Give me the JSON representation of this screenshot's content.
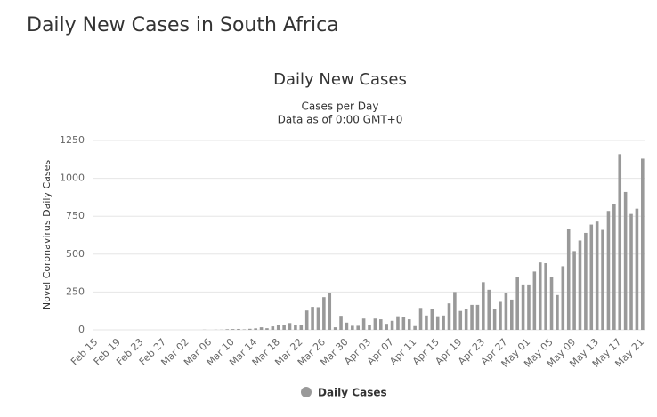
{
  "page_title": "Daily New Cases in South Africa",
  "chart_data": {
    "type": "bar",
    "title": "Daily New Cases",
    "subtitle": [
      "Cases per Day",
      "Data as of 0:00 GMT+0"
    ],
    "ylabel": "Novel Coronavirus Daily Cases",
    "categories": [
      "Feb 15",
      null,
      null,
      null,
      "Feb 19",
      null,
      null,
      null,
      "Feb 23",
      null,
      null,
      null,
      "Feb 27",
      null,
      null,
      null,
      "Mar 02",
      null,
      null,
      null,
      "Mar 06",
      null,
      null,
      null,
      "Mar 10",
      null,
      null,
      null,
      "Mar 14",
      null,
      null,
      null,
      "Mar 18",
      null,
      null,
      null,
      "Mar 22",
      null,
      null,
      null,
      "Mar 26",
      null,
      null,
      null,
      "Mar 30",
      null,
      null,
      null,
      "Apr 03",
      null,
      null,
      null,
      "Apr 07",
      null,
      null,
      null,
      "Apr 11",
      null,
      null,
      null,
      "Apr 15",
      null,
      null,
      null,
      "Apr 19",
      null,
      null,
      null,
      "Apr 23",
      null,
      null,
      null,
      "Apr 27",
      null,
      null,
      null,
      "May 01",
      null,
      null,
      null,
      "May 05",
      null,
      null,
      null,
      "May 09",
      null,
      null,
      null,
      "May 13",
      null,
      null,
      null,
      "May 17",
      null,
      null,
      null,
      "May 21"
    ],
    "series": [
      {
        "name": "Daily Cases",
        "color": "#999999",
        "values": [
          0,
          0,
          0,
          0,
          0,
          0,
          0,
          0,
          0,
          0,
          0,
          0,
          0,
          0,
          0,
          0,
          0,
          0,
          0,
          1,
          0,
          1,
          1,
          4,
          5,
          6,
          3,
          7,
          10,
          17,
          11,
          23,
          31,
          34,
          45,
          30,
          34,
          128,
          152,
          150,
          216,
          243,
          17,
          93,
          48,
          27,
          27,
          75,
          35,
          75,
          70,
          40,
          60,
          90,
          85,
          70,
          25,
          145,
          95,
          135,
          90,
          95,
          175,
          250,
          125,
          140,
          165,
          165,
          315,
          265,
          140,
          185,
          245,
          200,
          350,
          300,
          300,
          385,
          445,
          440,
          350,
          230,
          420,
          665,
          520,
          590,
          640,
          695,
          715,
          660,
          785,
          830,
          1160,
          910,
          765,
          800,
          1130
        ]
      }
    ],
    "ylim": [
      0,
      1250
    ],
    "yticks": [
      0,
      250,
      500,
      750,
      1000,
      1250
    ],
    "grid": true,
    "legend": "bottom"
  }
}
